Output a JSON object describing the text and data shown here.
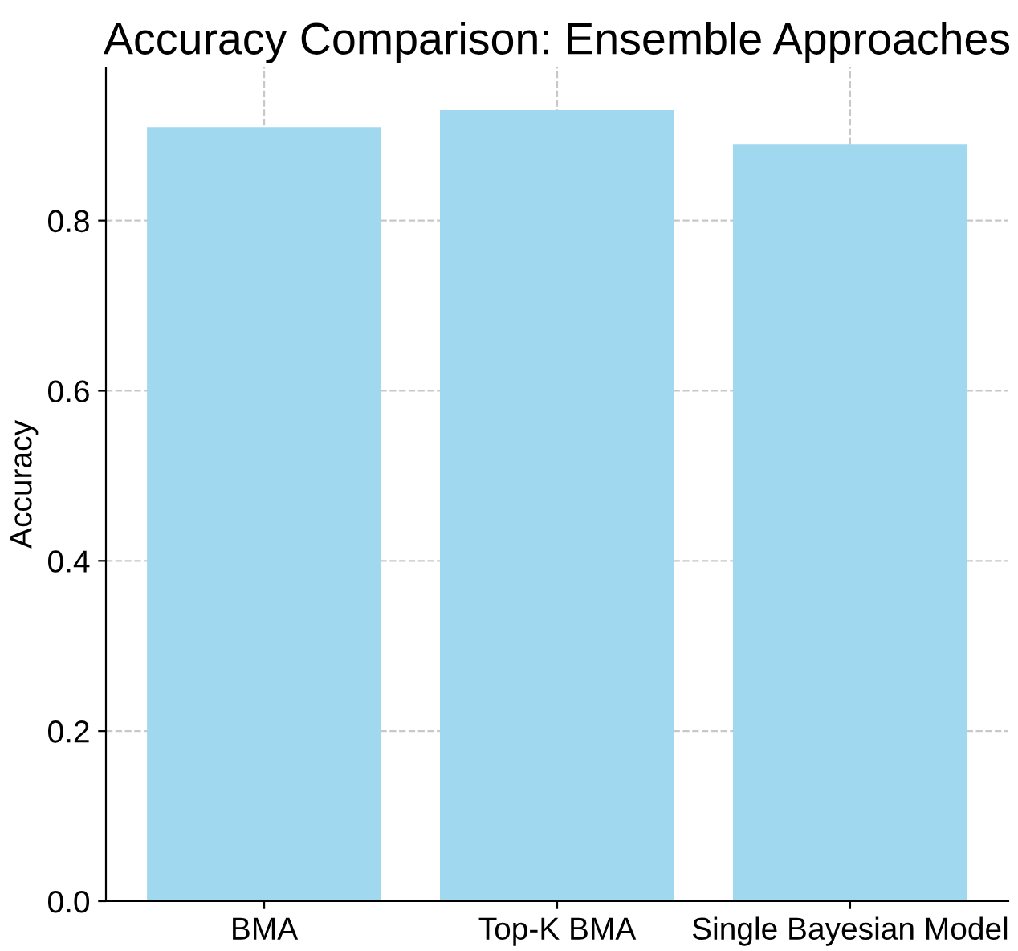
{
  "chart_data": {
    "type": "bar",
    "title": "Accuracy Comparison: Ensemble Approaches",
    "ylabel": "Accuracy",
    "categories": [
      "BMA",
      "Top-K BMA",
      "Single Bayesian Model"
    ],
    "values": [
      0.91,
      0.93,
      0.89
    ],
    "color": "#a0d8ef",
    "ylim": [
      0,
      0.98
    ],
    "yticks": [
      {
        "value": 0,
        "label": "0.0"
      },
      {
        "value": 0.2,
        "label": "0.2"
      },
      {
        "value": 0.4,
        "label": "0.4"
      },
      {
        "value": 0.6,
        "label": "0.6"
      },
      {
        "value": 0.8,
        "label": "0.8"
      }
    ],
    "grid": true,
    "legend": false
  }
}
